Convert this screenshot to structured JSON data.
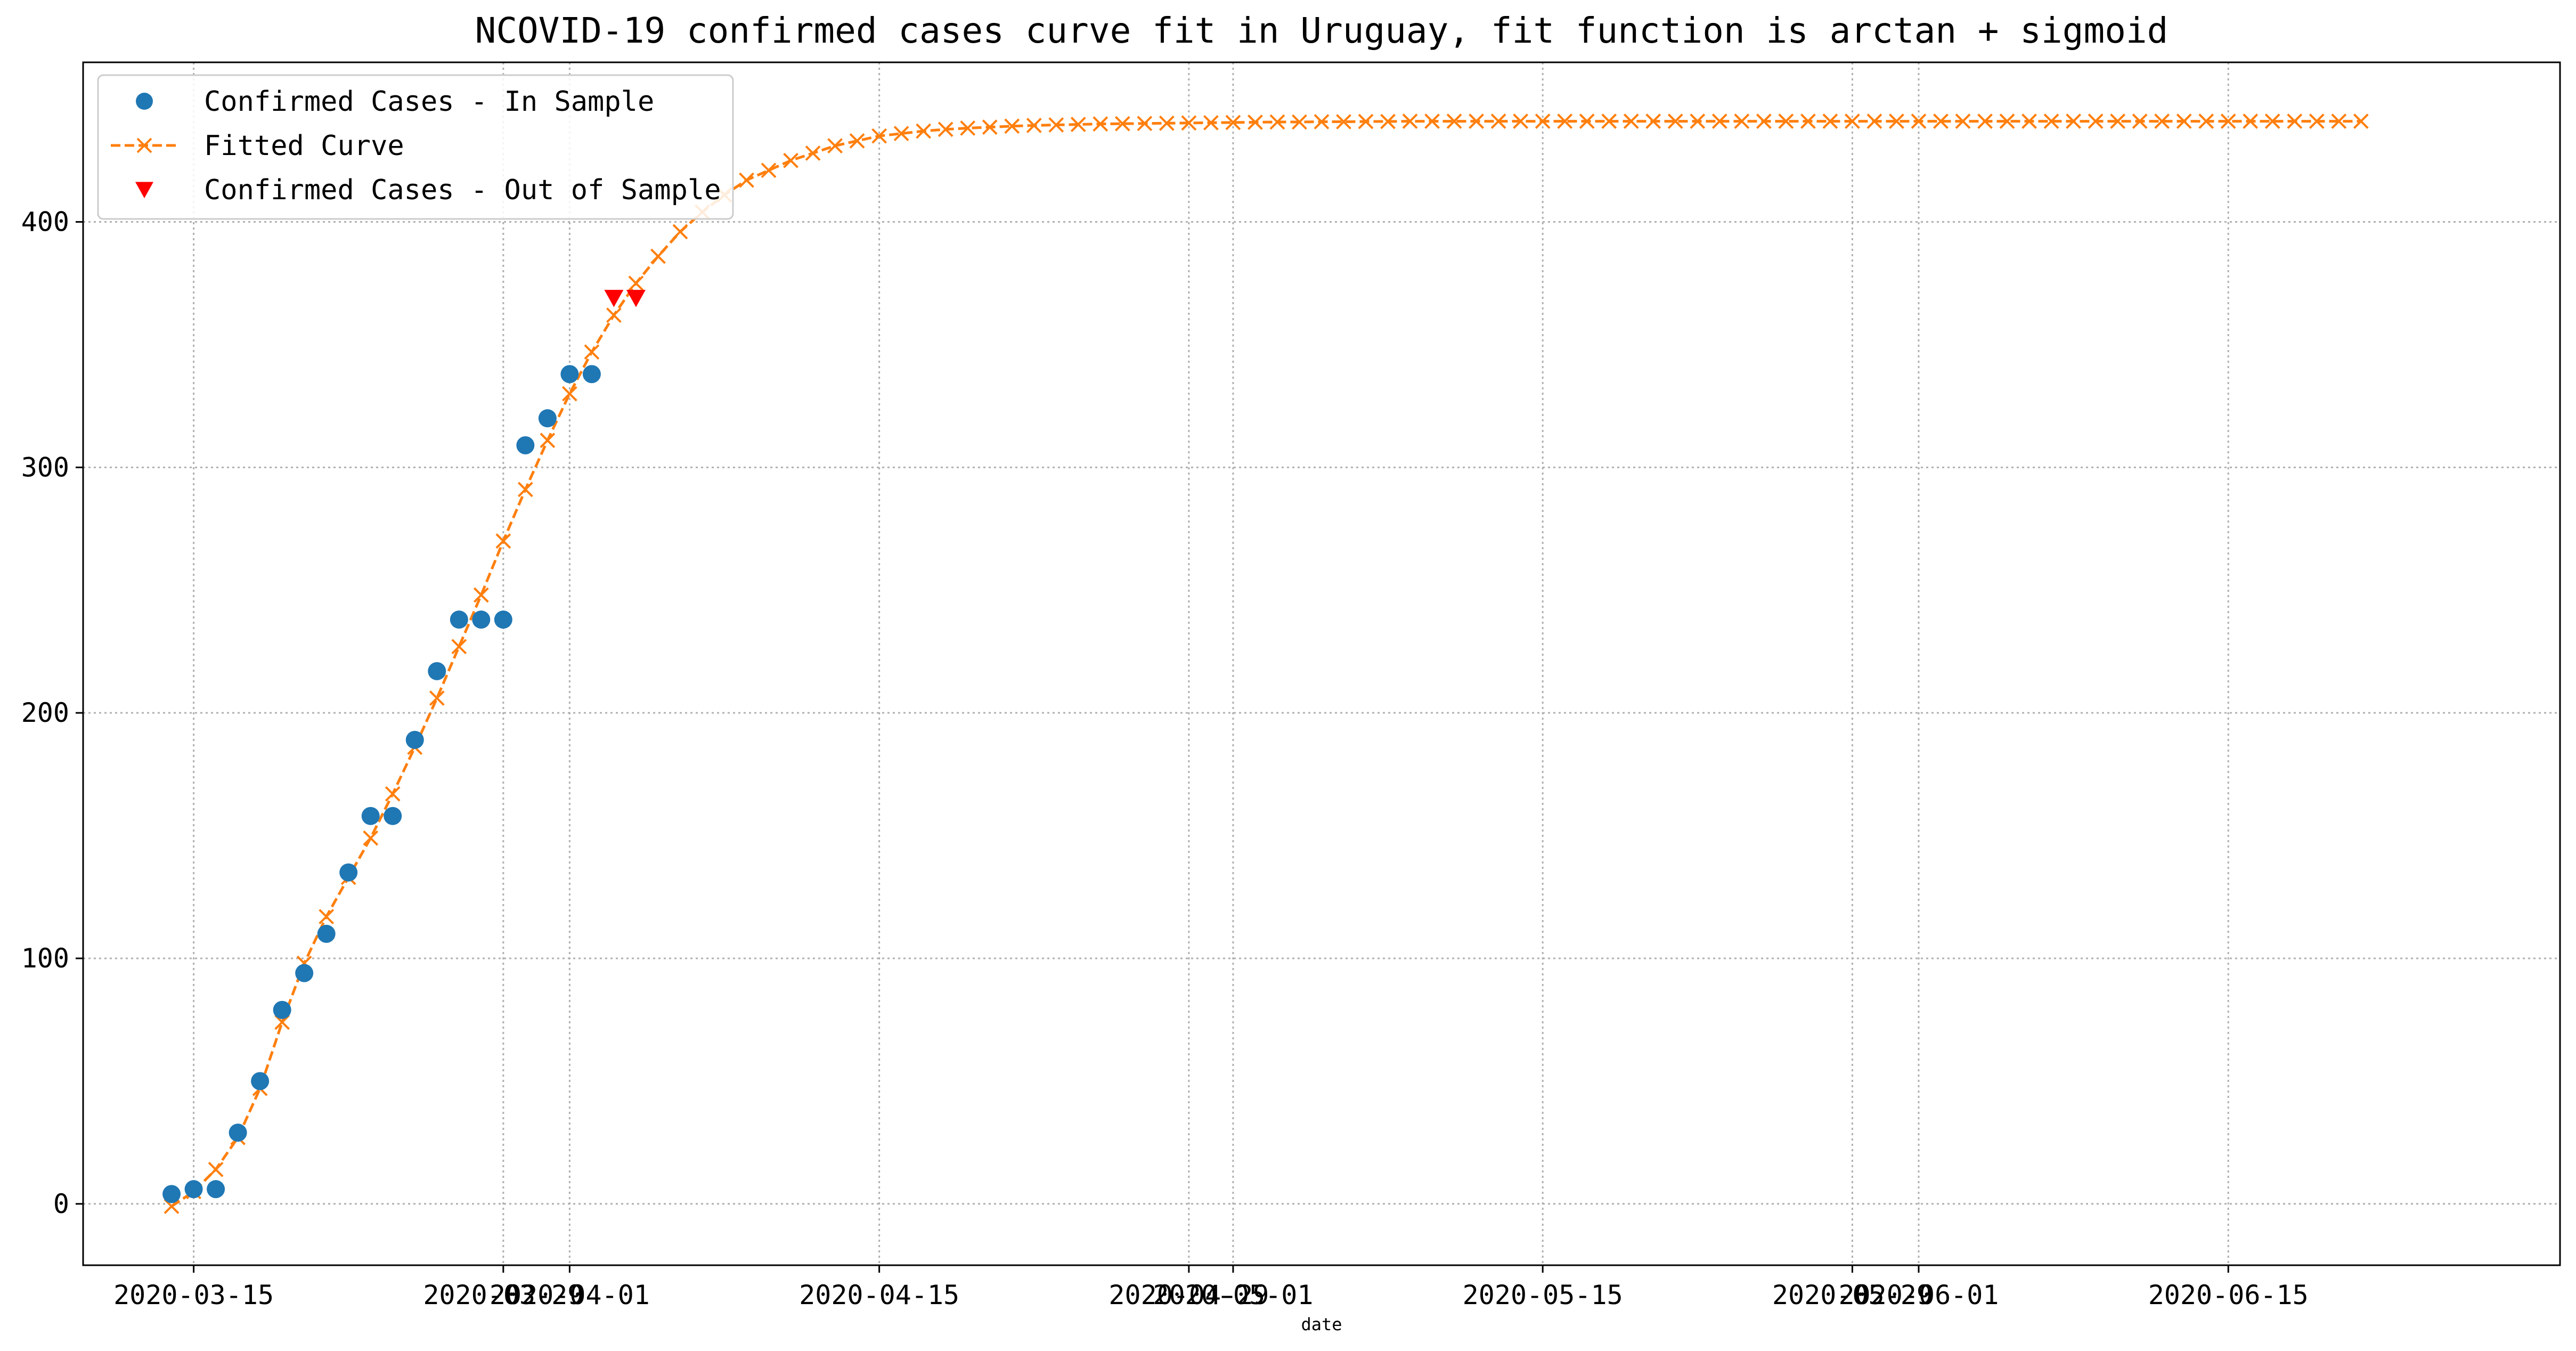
{
  "chart_data": {
    "type": "line",
    "title": "NCOVID-19 confirmed cases curve fit in Uruguay, fit function is arctan + sigmoid",
    "xlabel": "date",
    "ylabel": "",
    "x_axis_type": "date",
    "xlim": [
      "2020-03-10",
      "2020-06-30"
    ],
    "ylim": [
      -25,
      465
    ],
    "grid": true,
    "legend_position": "top-left",
    "x_ticks": [
      "2020-03-15",
      "2020-03-29",
      "2020-04-01",
      "2020-04-15",
      "2020-04-29",
      "2020-05-01",
      "2020-05-15",
      "2020-05-29",
      "2020-06-01",
      "2020-06-15"
    ],
    "y_ticks": [
      0,
      100,
      200,
      300,
      400
    ],
    "colors": {
      "in_sample": "#1f77b4",
      "fitted": "#ff7f0e",
      "out_of_sample": "#ff0000",
      "grid": "#b0b0b0"
    },
    "series": [
      {
        "name": "Confirmed Cases - In Sample",
        "marker": "circle",
        "x": [
          "2020-03-14",
          "2020-03-15",
          "2020-03-16",
          "2020-03-17",
          "2020-03-18",
          "2020-03-19",
          "2020-03-20",
          "2020-03-21",
          "2020-03-22",
          "2020-03-23",
          "2020-03-24",
          "2020-03-25",
          "2020-03-26",
          "2020-03-27",
          "2020-03-28",
          "2020-03-29",
          "2020-03-30",
          "2020-03-31",
          "2020-04-01",
          "2020-04-02"
        ],
        "y": [
          4,
          6,
          6,
          29,
          50,
          79,
          94,
          110,
          135,
          158,
          158,
          189,
          217,
          238,
          238,
          238,
          309,
          320,
          338,
          338
        ]
      },
      {
        "name": "Fitted Curve",
        "marker": "x",
        "line": "dashed",
        "start_date": "2020-03-14",
        "y": [
          -1,
          5,
          14,
          27,
          47,
          74,
          98,
          117,
          133,
          149,
          167,
          186,
          206,
          227,
          248,
          270,
          291,
          311,
          330,
          347,
          362,
          375,
          386,
          396,
          404,
          411,
          417,
          421,
          425,
          428,
          431,
          433,
          435,
          436,
          437,
          437.7,
          438.2,
          438.6,
          439,
          439.3,
          439.5,
          439.7,
          439.9,
          440,
          440.1,
          440.2,
          440.3,
          440.4,
          440.5,
          440.6,
          440.7,
          440.7,
          440.8,
          440.8,
          440.9,
          440.9,
          441,
          441,
          441,
          441,
          441,
          441,
          441,
          441,
          441,
          441,
          441,
          441,
          441,
          441,
          441,
          441,
          441,
          441,
          441,
          441,
          441,
          441,
          441,
          441,
          441,
          441,
          441,
          441,
          441,
          441,
          441,
          441,
          441,
          441,
          441,
          441,
          441,
          441,
          441,
          441,
          441,
          441,
          441,
          441
        ]
      },
      {
        "name": "Confirmed Cases - Out of Sample",
        "marker": "triangle-down",
        "x": [
          "2020-04-03",
          "2020-04-04"
        ],
        "y": [
          369,
          369
        ]
      }
    ]
  }
}
